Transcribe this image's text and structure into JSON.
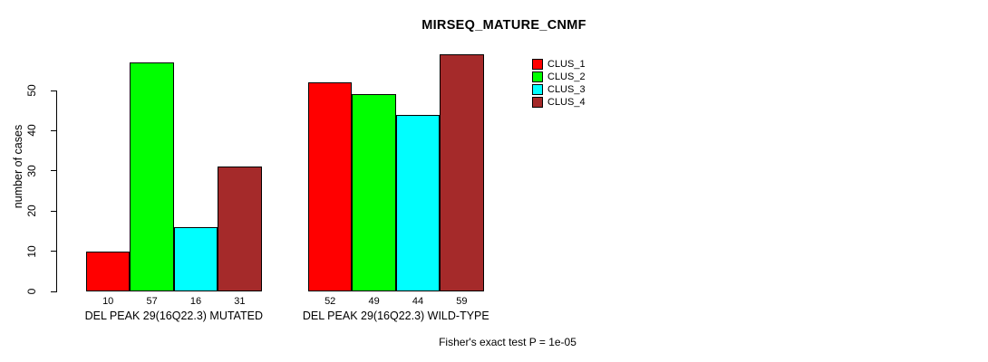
{
  "chart_data": {
    "type": "bar",
    "title": "MIRSEQ_MATURE_CNMF",
    "ylabel": "number of cases",
    "xlabel": "",
    "yticks": [
      0,
      10,
      20,
      30,
      40,
      50
    ],
    "ylim": [
      0,
      59
    ],
    "grid": false,
    "show_value_labels": true,
    "legend_position": "top-right",
    "series": [
      {
        "name": "CLUS_1",
        "color": "#FF0000"
      },
      {
        "name": "CLUS_2",
        "color": "#00FF00"
      },
      {
        "name": "CLUS_3",
        "color": "#00FFFF"
      },
      {
        "name": "CLUS_4",
        "color": "#A52A2A"
      }
    ],
    "groups": [
      {
        "label": "DEL PEAK 29(16Q22.3) MUTATED",
        "values": [
          10,
          57,
          16,
          31
        ]
      },
      {
        "label": "DEL PEAK 29(16Q22.3) WILD-TYPE",
        "values": [
          52,
          49,
          44,
          59
        ]
      }
    ],
    "annotation": "Fisher's exact test P = 1e-05"
  },
  "colors": {
    "axis": "#000000",
    "text": "#000000",
    "background": "#FFFFFF"
  }
}
